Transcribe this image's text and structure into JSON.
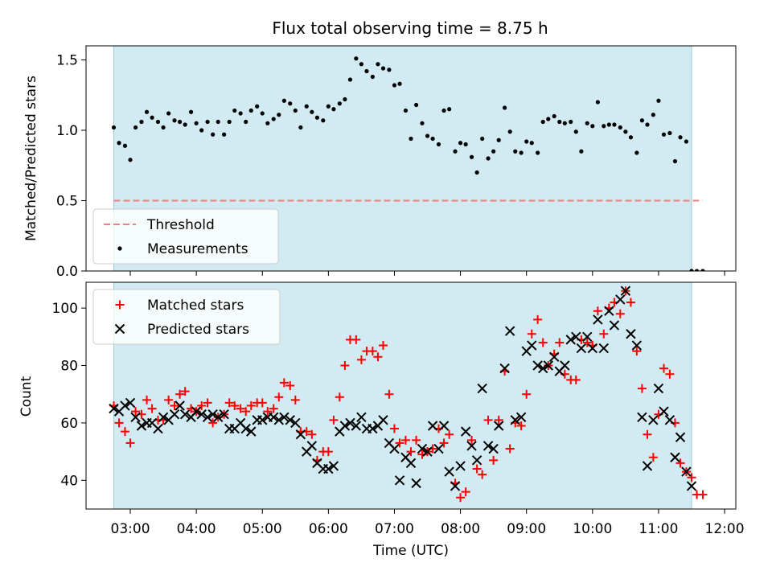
{
  "chart_data": [
    {
      "type": "scatter",
      "title": "Flux total observing time = 8.75 h",
      "ylabel": "Matched/Predicted stars",
      "xlabel": "",
      "ylim": [
        0,
        1.6
      ],
      "yticks": [
        "0.0",
        "0.5",
        "1.0",
        "1.5"
      ],
      "xlim_hours": [
        2.33,
        12.17
      ],
      "shaded_span_hours": [
        2.75,
        11.5
      ],
      "shade_color": "#add8e6",
      "threshold": {
        "name": "Threshold",
        "value": 0.5,
        "x_end_hours": 11.67,
        "color": "#f08080"
      },
      "legend": {
        "position": "lower-left",
        "entries": [
          "Threshold",
          "Measurements"
        ]
      },
      "series": [
        {
          "name": "Measurements",
          "marker": "dot",
          "color": "#000000",
          "x": [
            2.75,
            2.83,
            2.92,
            3.0,
            3.08,
            3.17,
            3.25,
            3.33,
            3.42,
            3.5,
            3.58,
            3.67,
            3.75,
            3.83,
            3.92,
            4.0,
            4.08,
            4.17,
            4.25,
            4.33,
            4.42,
            4.5,
            4.58,
            4.67,
            4.75,
            4.83,
            4.92,
            5.0,
            5.08,
            5.17,
            5.25,
            5.33,
            5.42,
            5.5,
            5.58,
            5.67,
            5.75,
            5.83,
            5.92,
            6.0,
            6.08,
            6.17,
            6.25,
            6.33,
            6.42,
            6.5,
            6.58,
            6.67,
            6.75,
            6.83,
            6.92,
            7.0,
            7.08,
            7.17,
            7.25,
            7.33,
            7.42,
            7.5,
            7.58,
            7.67,
            7.75,
            7.83,
            7.92,
            8.0,
            8.08,
            8.17,
            8.25,
            8.33,
            8.42,
            8.5,
            8.58,
            8.67,
            8.75,
            8.83,
            8.92,
            9.0,
            9.08,
            9.17,
            9.25,
            9.33,
            9.42,
            9.5,
            9.58,
            9.67,
            9.75,
            9.83,
            9.92,
            10.0,
            10.08,
            10.17,
            10.25,
            10.33,
            10.42,
            10.5,
            10.58,
            10.67,
            10.75,
            10.83,
            10.92,
            11.0,
            11.08,
            11.17,
            11.25,
            11.33,
            11.42,
            11.5,
            11.58,
            11.67
          ],
          "values": [
            1.02,
            0.91,
            0.89,
            0.79,
            1.02,
            1.06,
            1.13,
            1.09,
            1.06,
            1.02,
            1.12,
            1.07,
            1.06,
            1.04,
            1.13,
            1.05,
            1.0,
            1.06,
            0.97,
            1.06,
            0.97,
            1.06,
            1.14,
            1.12,
            1.06,
            1.14,
            1.17,
            1.12,
            1.05,
            1.08,
            1.11,
            1.21,
            1.19,
            1.14,
            1.02,
            1.17,
            1.13,
            1.09,
            1.07,
            1.17,
            1.15,
            1.19,
            1.22,
            1.36,
            1.51,
            1.47,
            1.42,
            1.38,
            1.47,
            1.44,
            1.43,
            1.32,
            1.33,
            1.14,
            0.94,
            1.18,
            1.05,
            0.96,
            0.94,
            0.9,
            1.14,
            1.15,
            0.85,
            0.91,
            0.9,
            0.81,
            0.7,
            0.94,
            0.8,
            0.85,
            0.93,
            1.16,
            0.99,
            0.85,
            0.84,
            0.92,
            0.91,
            0.84,
            1.06,
            1.08,
            1.1,
            1.06,
            1.05,
            1.06,
            0.99,
            0.85,
            1.05,
            1.03,
            1.2,
            1.03,
            1.04,
            1.04,
            1.02,
            0.99,
            0.95,
            0.84,
            1.07,
            1.04,
            1.11,
            1.21,
            0.97,
            0.98,
            0.78,
            0.95,
            0.92,
            0.0,
            0.0,
            0.0
          ]
        }
      ]
    },
    {
      "type": "scatter",
      "title": "",
      "ylabel": "Count",
      "xlabel": "Time (UTC)",
      "ylim": [
        30,
        109
      ],
      "yticks": [
        "40",
        "60",
        "80",
        "100"
      ],
      "xticks": [
        "03:00",
        "04:00",
        "05:00",
        "06:00",
        "07:00",
        "08:00",
        "09:00",
        "10:00",
        "11:00",
        "12:00"
      ],
      "xlim_hours": [
        2.33,
        12.17
      ],
      "shaded_span_hours": [
        2.75,
        11.5
      ],
      "shade_color": "#add8e6",
      "legend": {
        "position": "upper-left",
        "entries": [
          "Matched stars",
          "Predicted stars"
        ]
      },
      "series": [
        {
          "name": "Matched stars",
          "marker": "plus",
          "color": "#ff0000",
          "x": [
            2.75,
            2.83,
            2.92,
            3.0,
            3.08,
            3.17,
            3.25,
            3.33,
            3.42,
            3.5,
            3.58,
            3.67,
            3.75,
            3.83,
            3.92,
            4.0,
            4.08,
            4.17,
            4.25,
            4.33,
            4.42,
            4.5,
            4.58,
            4.67,
            4.75,
            4.83,
            4.92,
            5.0,
            5.08,
            5.17,
            5.25,
            5.33,
            5.42,
            5.5,
            5.58,
            5.67,
            5.75,
            5.83,
            5.92,
            6.0,
            6.08,
            6.17,
            6.25,
            6.33,
            6.42,
            6.5,
            6.58,
            6.67,
            6.75,
            6.83,
            6.92,
            7.0,
            7.08,
            7.17,
            7.25,
            7.33,
            7.42,
            7.5,
            7.58,
            7.67,
            7.75,
            7.83,
            7.92,
            8.0,
            8.08,
            8.17,
            8.25,
            8.33,
            8.42,
            8.5,
            8.58,
            8.67,
            8.75,
            8.83,
            8.92,
            9.0,
            9.08,
            9.17,
            9.25,
            9.33,
            9.42,
            9.5,
            9.58,
            9.67,
            9.75,
            9.83,
            9.92,
            10.0,
            10.08,
            10.17,
            10.25,
            10.33,
            10.42,
            10.5,
            10.58,
            10.67,
            10.75,
            10.83,
            10.92,
            11.0,
            11.08,
            11.17,
            11.25,
            11.33,
            11.42,
            11.5,
            11.58,
            11.67
          ],
          "values": [
            66,
            60,
            57,
            53,
            64,
            63,
            68,
            65,
            61,
            61,
            68,
            66,
            70,
            71,
            65,
            64,
            66,
            67,
            60,
            62,
            63,
            67,
            66,
            65,
            64,
            66,
            67,
            67,
            64,
            65,
            69,
            74,
            73,
            68,
            57,
            57,
            56,
            47,
            50,
            50,
            61,
            69,
            80,
            89,
            89,
            82,
            85,
            85,
            83,
            87,
            70,
            58,
            53,
            54,
            50,
            54,
            49,
            50,
            51,
            58,
            53,
            56,
            39,
            34,
            36,
            54,
            44,
            42,
            61,
            47,
            61,
            78,
            51,
            60,
            59,
            70,
            91,
            96,
            88,
            80,
            84,
            88,
            77,
            75,
            75,
            89,
            88,
            87,
            99,
            91,
            100,
            102,
            98,
            106,
            102,
            85,
            72,
            56,
            48,
            63,
            79,
            77,
            60,
            46,
            43,
            41,
            35,
            35
          ]
        },
        {
          "name": "Predicted stars",
          "marker": "x",
          "color": "#000000",
          "x": [
            2.75,
            2.83,
            2.92,
            3.0,
            3.08,
            3.17,
            3.25,
            3.33,
            3.42,
            3.5,
            3.58,
            3.67,
            3.75,
            3.83,
            3.92,
            4.0,
            4.08,
            4.17,
            4.25,
            4.33,
            4.42,
            4.5,
            4.58,
            4.67,
            4.75,
            4.83,
            4.92,
            5.0,
            5.08,
            5.17,
            5.25,
            5.33,
            5.42,
            5.5,
            5.58,
            5.67,
            5.75,
            5.83,
            5.92,
            6.0,
            6.08,
            6.17,
            6.25,
            6.33,
            6.42,
            6.5,
            6.58,
            6.67,
            6.75,
            6.83,
            6.92,
            7.0,
            7.08,
            7.17,
            7.25,
            7.33,
            7.42,
            7.5,
            7.58,
            7.67,
            7.75,
            7.83,
            7.92,
            8.0,
            8.08,
            8.17,
            8.25,
            8.33,
            8.42,
            8.5,
            8.58,
            8.67,
            8.75,
            8.83,
            8.92,
            9.0,
            9.08,
            9.17,
            9.25,
            9.33,
            9.42,
            9.5,
            9.58,
            9.67,
            9.75,
            9.83,
            9.92,
            10.0,
            10.08,
            10.17,
            10.25,
            10.33,
            10.42,
            10.5,
            10.58,
            10.67,
            10.75,
            10.83,
            10.92,
            11.0,
            11.08,
            11.17,
            11.25,
            11.33,
            11.42,
            11.5
          ],
          "values": [
            65,
            64,
            66,
            67,
            62,
            59,
            60,
            60,
            58,
            62,
            61,
            63,
            66,
            63,
            62,
            64,
            63,
            62,
            63,
            62,
            63,
            58,
            58,
            60,
            58,
            57,
            61,
            61,
            62,
            62,
            61,
            62,
            61,
            60,
            56,
            50,
            52,
            46,
            44,
            44,
            45,
            57,
            59,
            60,
            59,
            62,
            58,
            58,
            59,
            61,
            53,
            51,
            40,
            48,
            46,
            39,
            51,
            50,
            59,
            51,
            59,
            43,
            38,
            45,
            57,
            52,
            47,
            72,
            52,
            51,
            59,
            79,
            92,
            61,
            62,
            85,
            87,
            80,
            79,
            80,
            83,
            78,
            80,
            89,
            90,
            86,
            90,
            86,
            96,
            86,
            99,
            94,
            103,
            106,
            91,
            87,
            62,
            45,
            61,
            72,
            64,
            61,
            48,
            55,
            43,
            38
          ]
        }
      ]
    }
  ]
}
